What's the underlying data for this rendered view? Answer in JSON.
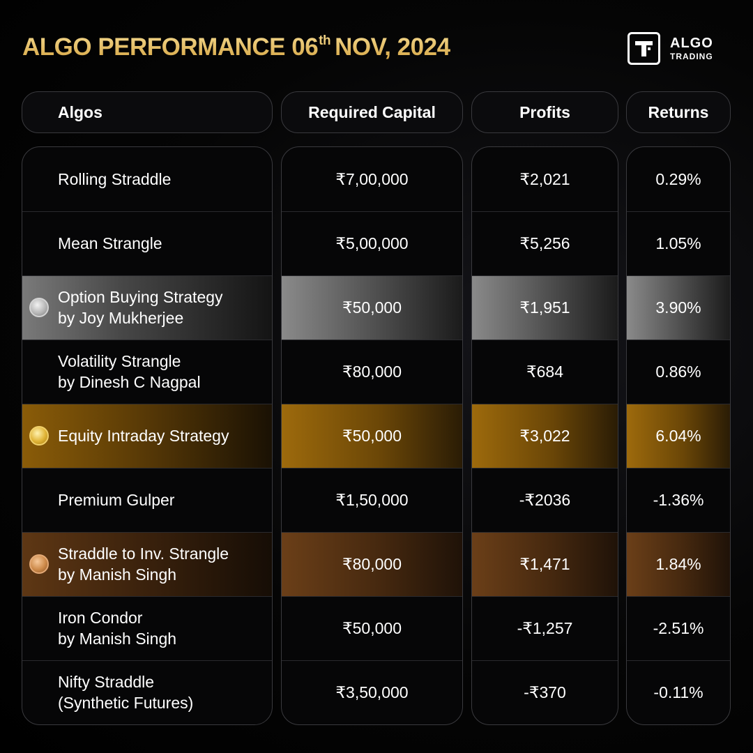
{
  "header": {
    "title_main": "ALGO PERFORMANCE 06",
    "title_sup": "th",
    "title_rest": "NOV, 2024",
    "logo_line1": "ALGO",
    "logo_line2": "TRADING"
  },
  "columns": {
    "algos": "Algos",
    "capital": "Required Capital",
    "profits": "Profits",
    "returns": "Returns"
  },
  "rows": [
    {
      "name1": "Rolling Straddle",
      "name2": "",
      "capital": "₹7,00,000",
      "profit": "₹2,021",
      "returns": "0.29%",
      "highlight": "none"
    },
    {
      "name1": "Mean Strangle",
      "name2": "",
      "capital": "₹5,00,000",
      "profit": "₹5,256",
      "returns": "1.05%",
      "highlight": "none"
    },
    {
      "name1": "Option Buying Strategy",
      "name2": "by Joy Mukherjee",
      "capital": "₹50,000",
      "profit": "₹1,951",
      "returns": "3.90%",
      "highlight": "silver"
    },
    {
      "name1": "Volatility Strangle",
      "name2": "by Dinesh C Nagpal",
      "capital": "₹80,000",
      "profit": "₹684",
      "returns": "0.86%",
      "highlight": "none"
    },
    {
      "name1": "Equity Intraday Strategy",
      "name2": "",
      "capital": "₹50,000",
      "profit": "₹3,022",
      "returns": "6.04%",
      "highlight": "gold"
    },
    {
      "name1": "Premium Gulper",
      "name2": "",
      "capital": "₹1,50,000",
      "profit": "-₹2036",
      "returns": "-1.36%",
      "highlight": "none"
    },
    {
      "name1": "Straddle to Inv. Strangle",
      "name2": "by Manish Singh",
      "capital": "₹80,000",
      "profit": "₹1,471",
      "returns": "1.84%",
      "highlight": "bronze"
    },
    {
      "name1": "Iron Condor",
      "name2": "by Manish Singh",
      "capital": "₹50,000",
      "profit": "-₹1,257",
      "returns": "-2.51%",
      "highlight": "none"
    },
    {
      "name1": "Nifty Straddle",
      "name2": "(Synthetic Futures)",
      "capital": "₹3,50,000",
      "profit": "-₹370",
      "returns": "-0.11%",
      "highlight": "none"
    }
  ],
  "colors": {
    "title_gold": "#e8c169",
    "silver": "#8a8a8a",
    "gold": "#9d6a0c",
    "bronze": "#6b3f18"
  }
}
